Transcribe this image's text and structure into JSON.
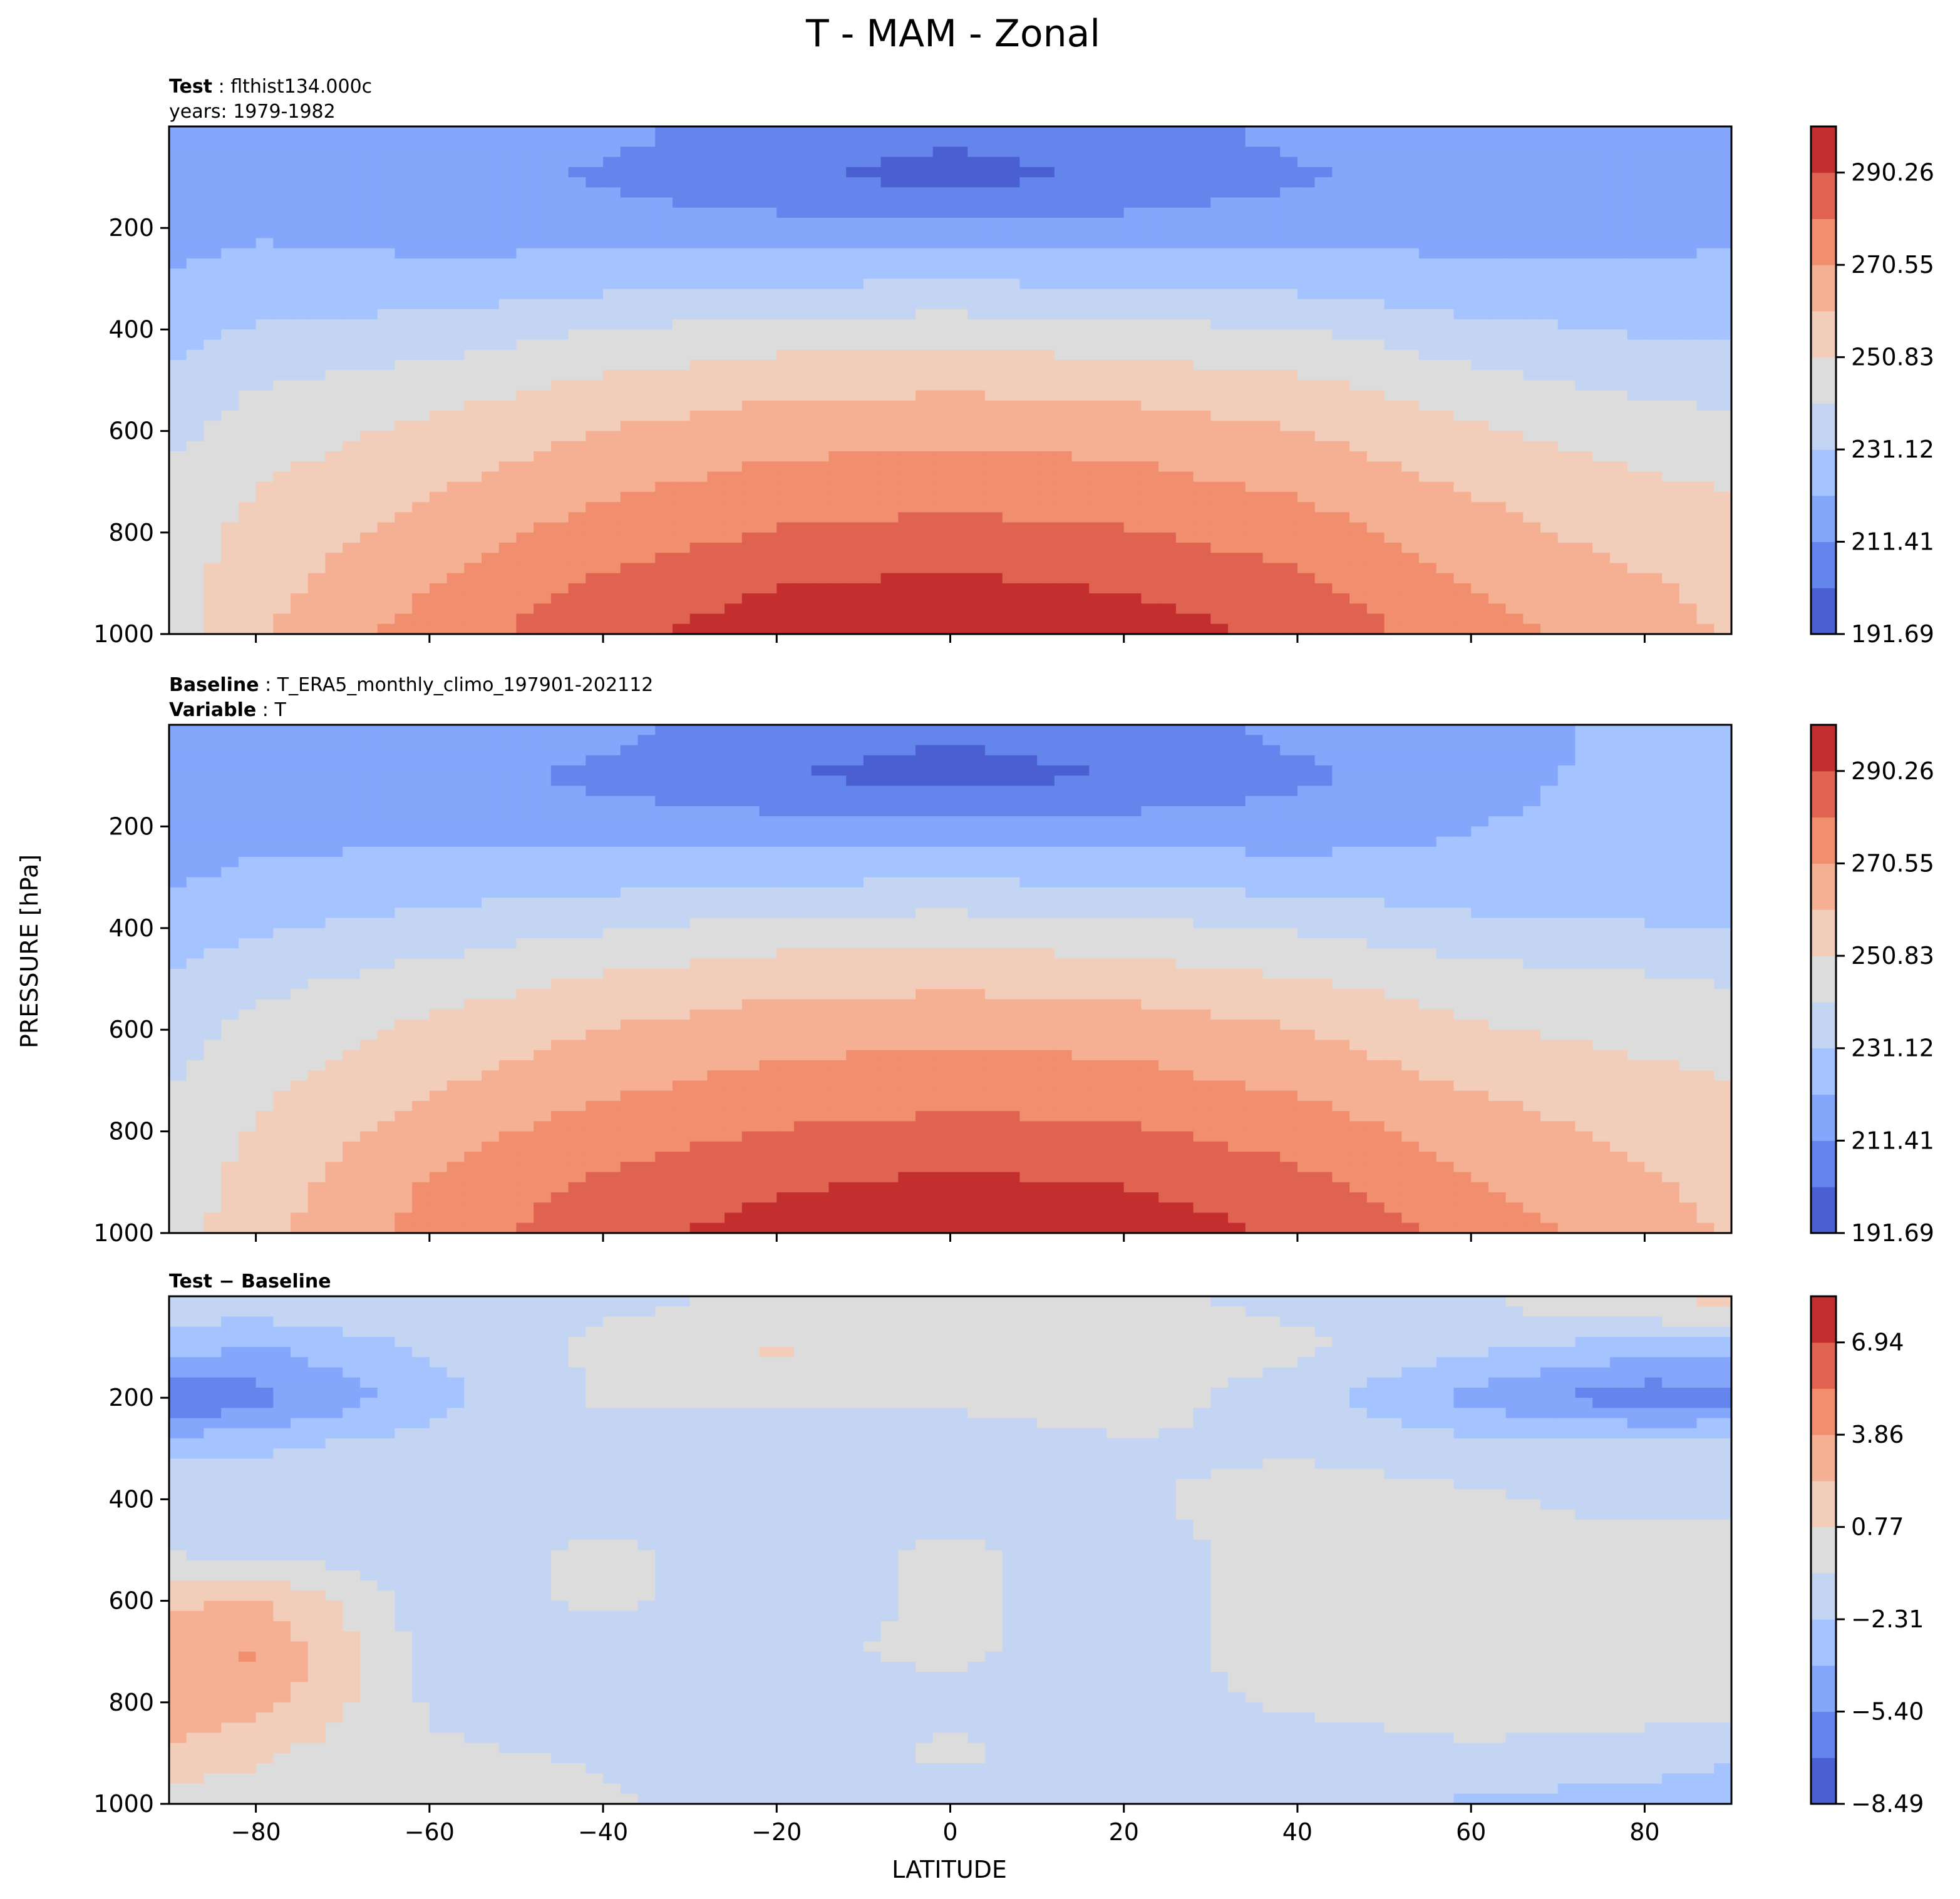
{
  "figure": {
    "title": "T - MAM - Zonal",
    "xlabel": "LATITUDE",
    "ylabel": "PRESSURE [hPa]"
  },
  "panels": [
    {
      "title_lines": [
        {
          "bold": "Test",
          "sep": " : ",
          "text": "flthist134.000c"
        },
        {
          "bold": "",
          "sep": "",
          "text": "years: 1979-1982"
        }
      ]
    },
    {
      "title_lines": [
        {
          "bold": "Baseline",
          "sep": " : ",
          "text": "T_ERA5_monthly_climo_197901-202112"
        },
        {
          "bold": "Variable",
          "sep": " : ",
          "text": "T"
        }
      ]
    },
    {
      "title_lines": [
        {
          "bold": "Test − Baseline",
          "sep": "",
          "text": ""
        }
      ]
    }
  ],
  "colors": {
    "cmap_coolwarm": [
      "#4a5fd1",
      "#6485ec",
      "#84a7fc",
      "#a5c3fe",
      "#c4d5f3",
      "#dcdcdc",
      "#f1cdba",
      "#f5b093",
      "#f08e6d",
      "#df6350",
      "#c32f2f"
    ]
  },
  "chart_data": [
    {
      "type": "heatmap",
      "subtype": "filled-contour",
      "name": "Test",
      "x": [
        -90,
        -80,
        -60,
        -40,
        -20,
        0,
        20,
        40,
        60,
        80,
        90
      ],
      "y_pressure_hPa": [
        20,
        100,
        200,
        300,
        400,
        500,
        600,
        700,
        800,
        900,
        1000
      ],
      "xlim": [
        -90,
        90
      ],
      "ylim": [
        1000,
        0
      ],
      "xticks": [
        -80,
        -60,
        -40,
        -20,
        0,
        20,
        40,
        60,
        80
      ],
      "yticks": [
        200,
        400,
        600,
        800,
        1000
      ],
      "levels": [
        191.69,
        201.55,
        211.41,
        221.27,
        231.12,
        240.98,
        250.83,
        260.69,
        270.55,
        280.4,
        290.26,
        300.12
      ],
      "colorbar_ticks": [
        "191.69",
        "211.41",
        "231.12",
        "250.83",
        "270.55",
        "290.26"
      ],
      "values": [
        [
          221,
          219,
          218,
          214,
          206,
          203,
          206,
          214,
          218,
          218,
          219
        ],
        [
          213,
          218,
          216,
          210,
          203,
          198,
          203,
          210,
          216,
          217,
          218
        ],
        [
          216,
          220,
          218,
          216,
          215,
          214,
          215,
          217,
          219,
          220,
          220
        ],
        [
          223,
          225,
          224,
          227,
          229,
          230,
          229,
          227,
          223,
          222,
          223
        ],
        [
          227,
          232,
          235,
          241,
          245,
          246,
          244,
          241,
          234,
          230,
          229
        ],
        [
          234,
          240,
          245,
          252,
          257,
          258,
          256,
          252,
          244,
          238,
          236
        ],
        [
          238,
          246,
          253,
          261,
          266,
          268,
          266,
          261,
          252,
          246,
          244
        ],
        [
          244,
          250,
          259,
          268,
          274,
          276,
          274,
          268,
          259,
          252,
          250
        ],
        [
          246,
          254,
          265,
          275,
          281,
          283,
          281,
          276,
          265,
          256,
          253
        ],
        [
          246,
          257,
          270,
          282,
          290,
          292,
          289,
          282,
          270,
          262,
          257
        ],
        [
          246,
          260,
          275,
          288,
          296,
          297,
          296,
          288,
          275,
          264,
          260
        ]
      ]
    },
    {
      "type": "heatmap",
      "subtype": "filled-contour",
      "name": "Baseline",
      "x": [
        -90,
        -80,
        -60,
        -40,
        -20,
        0,
        20,
        40,
        60,
        80,
        90
      ],
      "y_pressure_hPa": [
        20,
        100,
        200,
        300,
        400,
        500,
        600,
        700,
        800,
        900,
        1000
      ],
      "xlim": [
        -90,
        90
      ],
      "ylim": [
        1000,
        0
      ],
      "xticks": [
        -80,
        -60,
        -40,
        -20,
        0,
        20,
        40,
        60,
        80
      ],
      "yticks": [
        200,
        400,
        600,
        800,
        1000
      ],
      "levels": [
        191.69,
        201.55,
        211.41,
        221.27,
        231.12,
        240.98,
        250.83,
        260.69,
        270.55,
        280.4,
        290.26,
        300.12
      ],
      "colorbar_ticks": [
        "191.69",
        "211.41",
        "231.12",
        "250.83",
        "270.55",
        "290.26"
      ],
      "values": [
        [
          217,
          217,
          218,
          214,
          206,
          203,
          206,
          214,
          220,
          222,
          222
        ],
        [
          213,
          218,
          216,
          209,
          202,
          197,
          202,
          209,
          218,
          224,
          224
        ],
        [
          218,
          219,
          218,
          216,
          215,
          214,
          215,
          216,
          221,
          225,
          224
        ],
        [
          220,
          223,
          225,
          227,
          229,
          230,
          229,
          226,
          224,
          223,
          223
        ],
        [
          225,
          230,
          235,
          240,
          245,
          246,
          244,
          240,
          234,
          232,
          231
        ],
        [
          232,
          238,
          245,
          252,
          257,
          258,
          256,
          251,
          245,
          242,
          240
        ],
        [
          236,
          244,
          253,
          261,
          266,
          268,
          266,
          261,
          252,
          248,
          246
        ],
        [
          240,
          248,
          259,
          268,
          273,
          276,
          274,
          268,
          259,
          253,
          251
        ],
        [
          243,
          252,
          266,
          275,
          281,
          283,
          282,
          276,
          266,
          258,
          255
        ],
        [
          244,
          255,
          271,
          282,
          289,
          292,
          290,
          283,
          271,
          262,
          258
        ],
        [
          245,
          258,
          275,
          287,
          294,
          297,
          296,
          289,
          277,
          264,
          260
        ]
      ]
    },
    {
      "type": "heatmap",
      "subtype": "filled-contour",
      "name": "Test − Baseline",
      "x": [
        -90,
        -80,
        -60,
        -40,
        -20,
        0,
        20,
        40,
        60,
        80,
        90
      ],
      "y_pressure_hPa": [
        20,
        100,
        200,
        300,
        400,
        500,
        600,
        700,
        800,
        900,
        1000
      ],
      "xlim": [
        -90,
        90
      ],
      "ylim": [
        1000,
        0
      ],
      "xticks": [
        -80,
        -60,
        -40,
        -20,
        0,
        20,
        40,
        60,
        80
      ],
      "yticks": [
        200,
        400,
        600,
        800,
        1000
      ],
      "levels": [
        -8.49,
        -6.94,
        -5.4,
        -3.85,
        -2.31,
        -0.77,
        0.77,
        2.31,
        3.86,
        5.4,
        6.94,
        8.48
      ],
      "colorbar_ticks": [
        "−8.49",
        "−5.40",
        "−2.31",
        "0.77",
        "3.86",
        "6.94"
      ],
      "values": [
        [
          -1.5,
          -1.5,
          -1.0,
          -1.0,
          -0.5,
          -0.5,
          -0.5,
          -1.0,
          -1.0,
          0.5,
          1.0
        ],
        [
          -3.0,
          -4.0,
          -2.0,
          -0.5,
          1.0,
          0.0,
          0.0,
          -0.5,
          -2.0,
          -3.0,
          -3.0
        ],
        [
          -7.5,
          -6.0,
          -3.0,
          -0.5,
          -0.5,
          -0.5,
          0.0,
          -1.5,
          -4.5,
          -6.5,
          -6.0
        ],
        [
          -2.5,
          -2.5,
          -1.5,
          -1.5,
          -1.5,
          -1.5,
          -1.0,
          -1.0,
          -1.5,
          -1.5,
          -1.5
        ],
        [
          -1.5,
          -1.5,
          -1.5,
          -1.5,
          -1.5,
          -1.5,
          -1.0,
          0.0,
          -0.5,
          -1.5,
          -1.5
        ],
        [
          -1.0,
          -1.5,
          -1.5,
          -0.5,
          -1.5,
          -0.5,
          -1.5,
          0.0,
          0.0,
          0.0,
          0.0
        ],
        [
          2.0,
          2.5,
          -1.5,
          -0.5,
          -1.5,
          -0.5,
          -1.5,
          0.0,
          0.0,
          0.0,
          0.0
        ],
        [
          3.5,
          4.0,
          -1.5,
          -1.5,
          -1.0,
          -0.5,
          -1.5,
          0.0,
          0.0,
          0.0,
          0.0
        ],
        [
          3.5,
          3.0,
          -1.0,
          -1.5,
          -1.5,
          -1.0,
          -1.5,
          -0.5,
          0.0,
          0.0,
          0.0
        ],
        [
          2.0,
          1.0,
          -0.5,
          -1.0,
          -1.5,
          -0.5,
          -1.5,
          -1.5,
          -1.0,
          -1.5,
          -2.0
        ],
        [
          0.0,
          0.0,
          0.5,
          -0.5,
          -1.5,
          -1.5,
          -1.5,
          -2.0,
          -2.5,
          -3.0,
          -3.5
        ]
      ]
    }
  ]
}
